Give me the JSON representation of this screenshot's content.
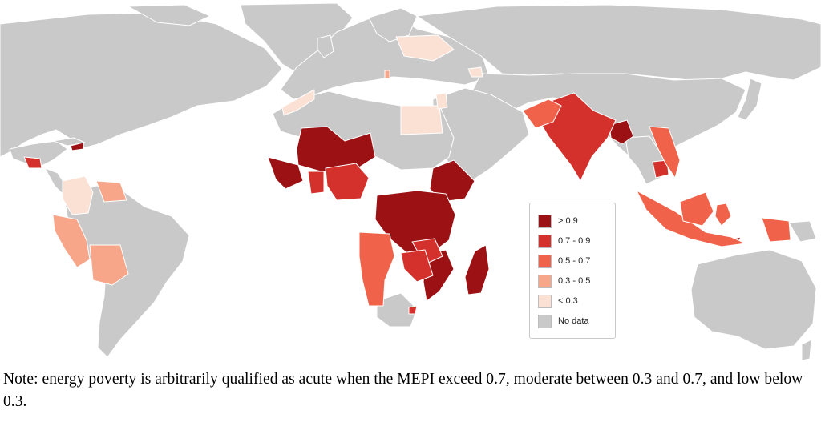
{
  "map": {
    "legend": {
      "items": [
        {
          "label": "> 0.9",
          "color": "#9b1114"
        },
        {
          "label": "0.7 - 0.9",
          "color": "#d5312c"
        },
        {
          "label": "0.5 - 0.7",
          "color": "#f0634a"
        },
        {
          "label": "0.3 - 0.5",
          "color": "#f7a68a"
        },
        {
          "label": "< 0.3",
          "color": "#fbe0d4"
        },
        {
          "label": "No data",
          "color": "#c9c9c9"
        }
      ]
    },
    "colors": {
      "land_no_data": "#c9c9c9",
      "border": "#ffffff",
      "ocean": "#ffffff"
    }
  },
  "note": {
    "text": "Note: energy poverty is arbitrarily qualified as acute when the MEPI exceed 0.7, moderate between 0.3 and 0.7, and low below 0.3."
  }
}
